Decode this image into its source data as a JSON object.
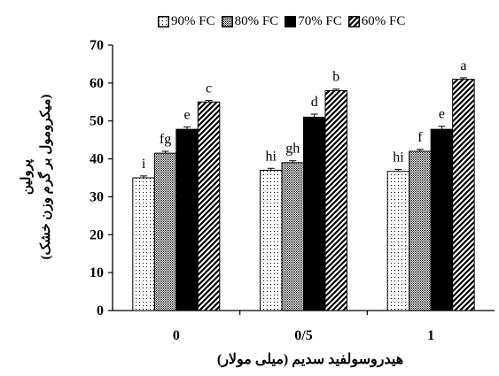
{
  "chart_data": {
    "type": "bar",
    "title": "",
    "xlabel": "هیدروسولفید سدیم  (میلی مولار)",
    "ylabel": [
      "پرولین",
      "(میکرومول بر گرم وزن خشک)"
    ],
    "categories": [
      "0",
      "0/5",
      "1"
    ],
    "ylim": [
      0,
      70
    ],
    "yticks": [
      0,
      10,
      20,
      30,
      40,
      50,
      60,
      70
    ],
    "grid": false,
    "legend_position": "top",
    "series": [
      {
        "name": "90% FC",
        "pattern": "dots",
        "values": [
          35,
          37,
          36.7
        ],
        "errors": [
          0.5,
          0.5,
          0.5
        ],
        "letters": [
          "i",
          "hi",
          "hi"
        ]
      },
      {
        "name": "80% FC",
        "pattern": "dense-dots",
        "values": [
          41.5,
          39,
          42
        ],
        "errors": [
          0.5,
          0.5,
          0.5
        ],
        "letters": [
          "fg",
          "gh",
          "f"
        ]
      },
      {
        "name": "70% FC",
        "pattern": "solid",
        "values": [
          47.8,
          51,
          47.8
        ],
        "errors": [
          0.6,
          0.8,
          0.8
        ],
        "letters": [
          "e",
          "d",
          "e"
        ]
      },
      {
        "name": "60% FC",
        "pattern": "diagonal",
        "values": [
          55,
          58,
          61
        ],
        "errors": [
          0.4,
          0.4,
          0.4
        ],
        "letters": [
          "c",
          "b",
          "a"
        ]
      }
    ],
    "colors": {
      "bar_stroke": "#000000",
      "solid_fill": "#000000",
      "background": "#ffffff"
    }
  }
}
